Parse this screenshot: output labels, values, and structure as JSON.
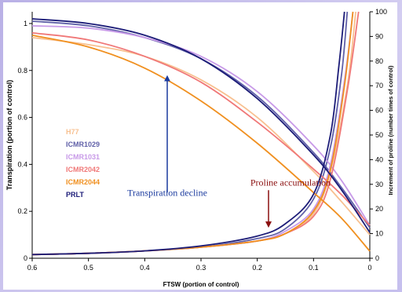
{
  "chart_data": {
    "type": "line",
    "xlabel": "FTSW (portion of control)",
    "ylabel": "Transpiration (portion of control)",
    "y2label": "Increment of proline (number times of control)",
    "xlim": [
      0.6,
      0
    ],
    "xticks": [
      "0.6",
      "0.5",
      "0.4",
      "0.3",
      "0.2",
      "0.1",
      "0"
    ],
    "ylim": [
      0,
      1.05
    ],
    "yticks": [
      "0",
      "0.2",
      "0.4",
      "0.6",
      "0.8",
      "1"
    ],
    "y2lim": [
      0,
      100
    ],
    "y2ticks": [
      "0",
      "10",
      "20",
      "30",
      "40",
      "50",
      "60",
      "70",
      "80",
      "90",
      "100"
    ],
    "grid": false,
    "legend_position": "left-middle",
    "series": [
      {
        "name": "H77",
        "color": "#f8c090",
        "transpiration": {
          "x": [
            0.6,
            0.5,
            0.4,
            0.3,
            0.2,
            0.1,
            0.05,
            0
          ],
          "y": [
            0.94,
            0.91,
            0.86,
            0.76,
            0.6,
            0.37,
            0.24,
            0.1
          ]
        },
        "proline": {
          "x": [
            0.6,
            0.5,
            0.4,
            0.3,
            0.2,
            0.15,
            0.1,
            0.07,
            0.04,
            0.025
          ],
          "y": [
            1.5,
            2,
            3,
            4.5,
            7,
            10,
            18,
            35,
            70,
            100
          ]
        }
      },
      {
        "name": "ICMR1029",
        "color": "#6060a8",
        "transpiration": {
          "x": [
            0.6,
            0.5,
            0.4,
            0.3,
            0.2,
            0.1,
            0.05,
            0
          ],
          "y": [
            1.01,
            0.99,
            0.94,
            0.85,
            0.69,
            0.45,
            0.3,
            0.13
          ]
        },
        "proline": {
          "x": [
            0.6,
            0.5,
            0.4,
            0.3,
            0.2,
            0.15,
            0.1,
            0.07,
            0.05,
            0.04
          ],
          "y": [
            1.5,
            2,
            3,
            4.5,
            8,
            12,
            24,
            45,
            75,
            100
          ]
        }
      },
      {
        "name": "ICMR1031",
        "color": "#c89ae8",
        "transpiration": {
          "x": [
            0.6,
            0.5,
            0.4,
            0.3,
            0.2,
            0.1,
            0.05,
            0
          ],
          "y": [
            0.99,
            0.98,
            0.94,
            0.86,
            0.71,
            0.48,
            0.33,
            0.14
          ]
        },
        "proline": {
          "x": [
            0.6,
            0.5,
            0.4,
            0.3,
            0.2,
            0.15,
            0.1,
            0.07,
            0.045,
            0.03
          ],
          "y": [
            1.5,
            2,
            3,
            4.5,
            7,
            11,
            20,
            38,
            72,
            100
          ]
        }
      },
      {
        "name": "ICMR2042",
        "color": "#f07878",
        "transpiration": {
          "x": [
            0.6,
            0.5,
            0.4,
            0.3,
            0.2,
            0.1,
            0.05,
            0
          ],
          "y": [
            0.96,
            0.93,
            0.86,
            0.75,
            0.58,
            0.38,
            0.27,
            0.14
          ]
        },
        "proline": {
          "x": [
            0.6,
            0.5,
            0.4,
            0.3,
            0.2,
            0.15,
            0.1,
            0.07,
            0.04,
            0.02
          ],
          "y": [
            1.5,
            2,
            3,
            4.5,
            7,
            10,
            17,
            32,
            68,
            100
          ]
        }
      },
      {
        "name": "ICMR2044",
        "color": "#f09020",
        "transpiration": {
          "x": [
            0.6,
            0.5,
            0.4,
            0.3,
            0.2,
            0.1,
            0.05,
            0
          ],
          "y": [
            0.95,
            0.9,
            0.81,
            0.67,
            0.49,
            0.28,
            0.17,
            0.03
          ]
        },
        "proline": {
          "x": [
            0.6,
            0.5,
            0.4,
            0.3,
            0.2,
            0.15,
            0.1,
            0.07,
            0.045,
            0.03
          ],
          "y": [
            1.5,
            2,
            3,
            4.5,
            7,
            10,
            19,
            36,
            70,
            100
          ]
        }
      },
      {
        "name": "PRLT",
        "color": "#1c1c78",
        "transpiration": {
          "x": [
            0.6,
            0.5,
            0.4,
            0.3,
            0.2,
            0.1,
            0.05,
            0
          ],
          "y": [
            1.02,
            1.0,
            0.95,
            0.85,
            0.68,
            0.44,
            0.29,
            0.11
          ]
        },
        "proline": {
          "x": [
            0.6,
            0.5,
            0.4,
            0.3,
            0.2,
            0.15,
            0.1,
            0.07,
            0.055,
            0.045
          ],
          "y": [
            1.5,
            2,
            3,
            5,
            9,
            14,
            26,
            50,
            78,
            100
          ]
        }
      }
    ],
    "annotations": [
      {
        "text": "Transpiration decline",
        "color": "#1a3a9e",
        "arrow_from": [
          0.36,
          0.28
        ],
        "arrow_to": [
          0.36,
          0.78
        ]
      },
      {
        "text": "Proline accumulation",
        "color": "#8b1010",
        "arrow_from": [
          0.18,
          0.29
        ],
        "arrow_to": [
          0.18,
          0.13
        ]
      }
    ]
  }
}
